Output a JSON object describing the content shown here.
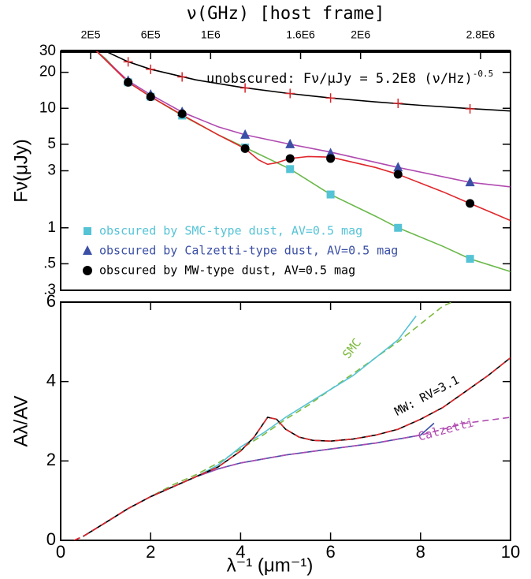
{
  "chart_data": [
    {
      "type": "line",
      "log_y": true,
      "x2_label": "ν(GHz) [host frame]",
      "x2lim": [
        0,
        3000000
      ],
      "x2ticks": [
        {
          "value": 200000,
          "label": "2E5"
        },
        {
          "value": 600000,
          "label": "6E5"
        },
        {
          "value": 1000000,
          "label": "1E6"
        },
        {
          "value": 1600000,
          "label": "1.6E6"
        },
        {
          "value": 2000000,
          "label": "2E6"
        },
        {
          "value": 2800000,
          "label": "2.8E6"
        }
      ],
      "y_label": "Fν(μJy)",
      "xlim": [
        0,
        10
      ],
      "ylim": [
        0.3,
        30
      ],
      "yticks": [
        30,
        20,
        10,
        5,
        3,
        1,
        {
          "value": 0.5,
          "label": ".5"
        },
        {
          "value": 0.3,
          "label": ".3"
        }
      ],
      "legend": "lower left",
      "annotation": {
        "text": "unobscured: Fν/μJy = 5.2E8 (ν/Hz)",
        "superscript": "-0.5"
      },
      "x": [
        1.5,
        2,
        2.7,
        4.1,
        5.1,
        6,
        7.5,
        9.1
      ],
      "series": [
        {
          "name": "obscured by SMC-type dust, AV=0.5 mag",
          "color": "#55c3d6",
          "marker": "square",
          "values": [
            16.5,
            12.5,
            8.7,
            4.7,
            3.1,
            1.9,
            1.0,
            0.55
          ]
        },
        {
          "name": "obscured by Calzetti-type dust, AV=0.5 mag",
          "color": "#3b4fa6",
          "marker": "triangle",
          "values": [
            17,
            13,
            9.3,
            6,
            5,
            4.2,
            3.2,
            2.4
          ]
        },
        {
          "name": "obscured by MW-type dust, AV=0.5 mag",
          "color": "#000000",
          "marker": "circle",
          "values": [
            16.5,
            12.5,
            9,
            4.6,
            3.8,
            3.8,
            2.8,
            1.6
          ]
        },
        {
          "color": "#d9262b",
          "marker": "plus",
          "values": [
            24.5,
            21.2,
            18.3,
            14.8,
            13.3,
            12.2,
            11,
            9.9
          ]
        }
      ],
      "curves": [
        {
          "color": "#000000",
          "x": [
            1,
            1.5,
            2,
            3,
            4,
            5,
            6,
            7,
            8,
            9,
            10
          ],
          "values": [
            30,
            24.5,
            21.2,
            17.3,
            15,
            13.4,
            12.2,
            11.3,
            10.6,
            10,
            9.5
          ]
        },
        {
          "color": "#6ab84a",
          "x": [
            0.8,
            1,
            1.5,
            2,
            2.7,
            3.5,
            4.1,
            5.1,
            6,
            7,
            7.5,
            8.5,
            9.1,
            10
          ],
          "values": [
            30,
            26,
            16.5,
            12.5,
            8.7,
            6,
            4.7,
            3.1,
            1.9,
            1.25,
            1.0,
            0.7,
            0.55,
            0.43
          ]
        },
        {
          "color": "#b04ab0",
          "x": [
            0.8,
            1.5,
            2,
            2.7,
            3.5,
            4.1,
            5.1,
            6,
            7.5,
            9.1,
            10
          ],
          "values": [
            30,
            17,
            13,
            9.3,
            7,
            6,
            5,
            4.3,
            3.2,
            2.4,
            2.2
          ]
        },
        {
          "color": "#e0262b",
          "x": [
            0.8,
            1.5,
            2,
            2.7,
            3.5,
            4.1,
            4.4,
            4.6,
            4.8,
            5.1,
            5.5,
            6,
            7,
            7.5,
            8.5,
            9.1,
            10
          ],
          "values": [
            30,
            16.5,
            12.5,
            8.8,
            6,
            4.6,
            3.7,
            3.4,
            3.5,
            3.8,
            3.95,
            3.9,
            3.2,
            2.8,
            2.0,
            1.6,
            1.15
          ]
        }
      ]
    },
    {
      "type": "line",
      "x_label": "λ⁻¹  (μm⁻¹)",
      "y_label": "Aλ/AV",
      "xlim": [
        0,
        10
      ],
      "xticks": [
        0,
        2,
        4,
        6,
        8,
        10
      ],
      "ylim": [
        0,
        6
      ],
      "yticks": [
        0,
        2,
        4,
        6
      ],
      "labels": [
        {
          "text": "SMC",
          "color": "#7cba3e"
        },
        {
          "text": "MW: RV=3.1",
          "color": "#000000"
        },
        {
          "text": "Calzetti",
          "color": "#b04ab0"
        }
      ],
      "curves": [
        {
          "color": "#7cba3e",
          "dash": true,
          "x": [
            0.3,
            0.5,
            1,
            1.5,
            2,
            2.5,
            3,
            3.5,
            4,
            4.5,
            5,
            5.5,
            6,
            6.5,
            7,
            7.5,
            8,
            8.5,
            8.7
          ],
          "values": [
            0,
            0.1,
            0.45,
            0.8,
            1.1,
            1.4,
            1.65,
            1.95,
            2.3,
            2.65,
            3.05,
            3.4,
            3.8,
            4.2,
            4.6,
            5.0,
            5.45,
            5.9,
            6.0
          ]
        },
        {
          "color": "#55c3d6",
          "x": [
            0.5,
            1,
            1.5,
            2,
            2.5,
            3,
            3.5,
            4,
            4.5,
            5,
            5.5,
            6,
            6.5,
            7,
            7.5,
            7.9
          ],
          "values": [
            0.1,
            0.45,
            0.8,
            1.1,
            1.35,
            1.6,
            1.9,
            2.35,
            2.7,
            3.1,
            3.45,
            3.8,
            4.15,
            4.6,
            5.05,
            5.65
          ]
        },
        {
          "color": "#3b4fa6",
          "x": [
            0.5,
            1,
            1.5,
            2,
            2.5,
            3,
            3.5,
            4,
            5,
            6,
            7,
            8,
            8.3
          ],
          "values": [
            0.1,
            0.45,
            0.8,
            1.1,
            1.35,
            1.6,
            1.8,
            1.95,
            2.15,
            2.3,
            2.45,
            2.65,
            2.95
          ]
        },
        {
          "color": "#b04ab0",
          "dash": true,
          "x": [
            0.3,
            0.5,
            1,
            1.5,
            2,
            2.5,
            3,
            3.5,
            4,
            5,
            6,
            7,
            8,
            8.5,
            9,
            10
          ],
          "values": [
            0,
            0.1,
            0.45,
            0.8,
            1.1,
            1.35,
            1.6,
            1.8,
            1.95,
            2.15,
            2.3,
            2.45,
            2.65,
            2.8,
            2.95,
            3.1
          ]
        },
        {
          "color": "#000000",
          "x": [
            0.5,
            1,
            1.5,
            2,
            2.5,
            3,
            3.5,
            4,
            4.3,
            4.6,
            4.8,
            5,
            5.3,
            5.6,
            6,
            6.5,
            7,
            7.5,
            8,
            8.5,
            9,
            9.5,
            10
          ],
          "values": [
            0.1,
            0.45,
            0.8,
            1.1,
            1.35,
            1.6,
            1.85,
            2.25,
            2.6,
            3.1,
            3.05,
            2.8,
            2.6,
            2.52,
            2.5,
            2.55,
            2.65,
            2.8,
            3.05,
            3.35,
            3.75,
            4.15,
            4.6
          ]
        },
        {
          "color": "#e0262b",
          "dash": true,
          "x": [
            0.3,
            0.5,
            1,
            1.5,
            2,
            2.5,
            3,
            3.5,
            4,
            4.3,
            4.6,
            4.8,
            5,
            5.3,
            5.6,
            6,
            6.5,
            7,
            7.5,
            8,
            8.5,
            9,
            9.5,
            10
          ],
          "values": [
            0,
            0.1,
            0.45,
            0.8,
            1.1,
            1.35,
            1.6,
            1.85,
            2.25,
            2.6,
            3.1,
            3.05,
            2.8,
            2.6,
            2.52,
            2.5,
            2.55,
            2.65,
            2.8,
            3.05,
            3.35,
            3.75,
            4.15,
            4.6
          ]
        }
      ]
    }
  ]
}
